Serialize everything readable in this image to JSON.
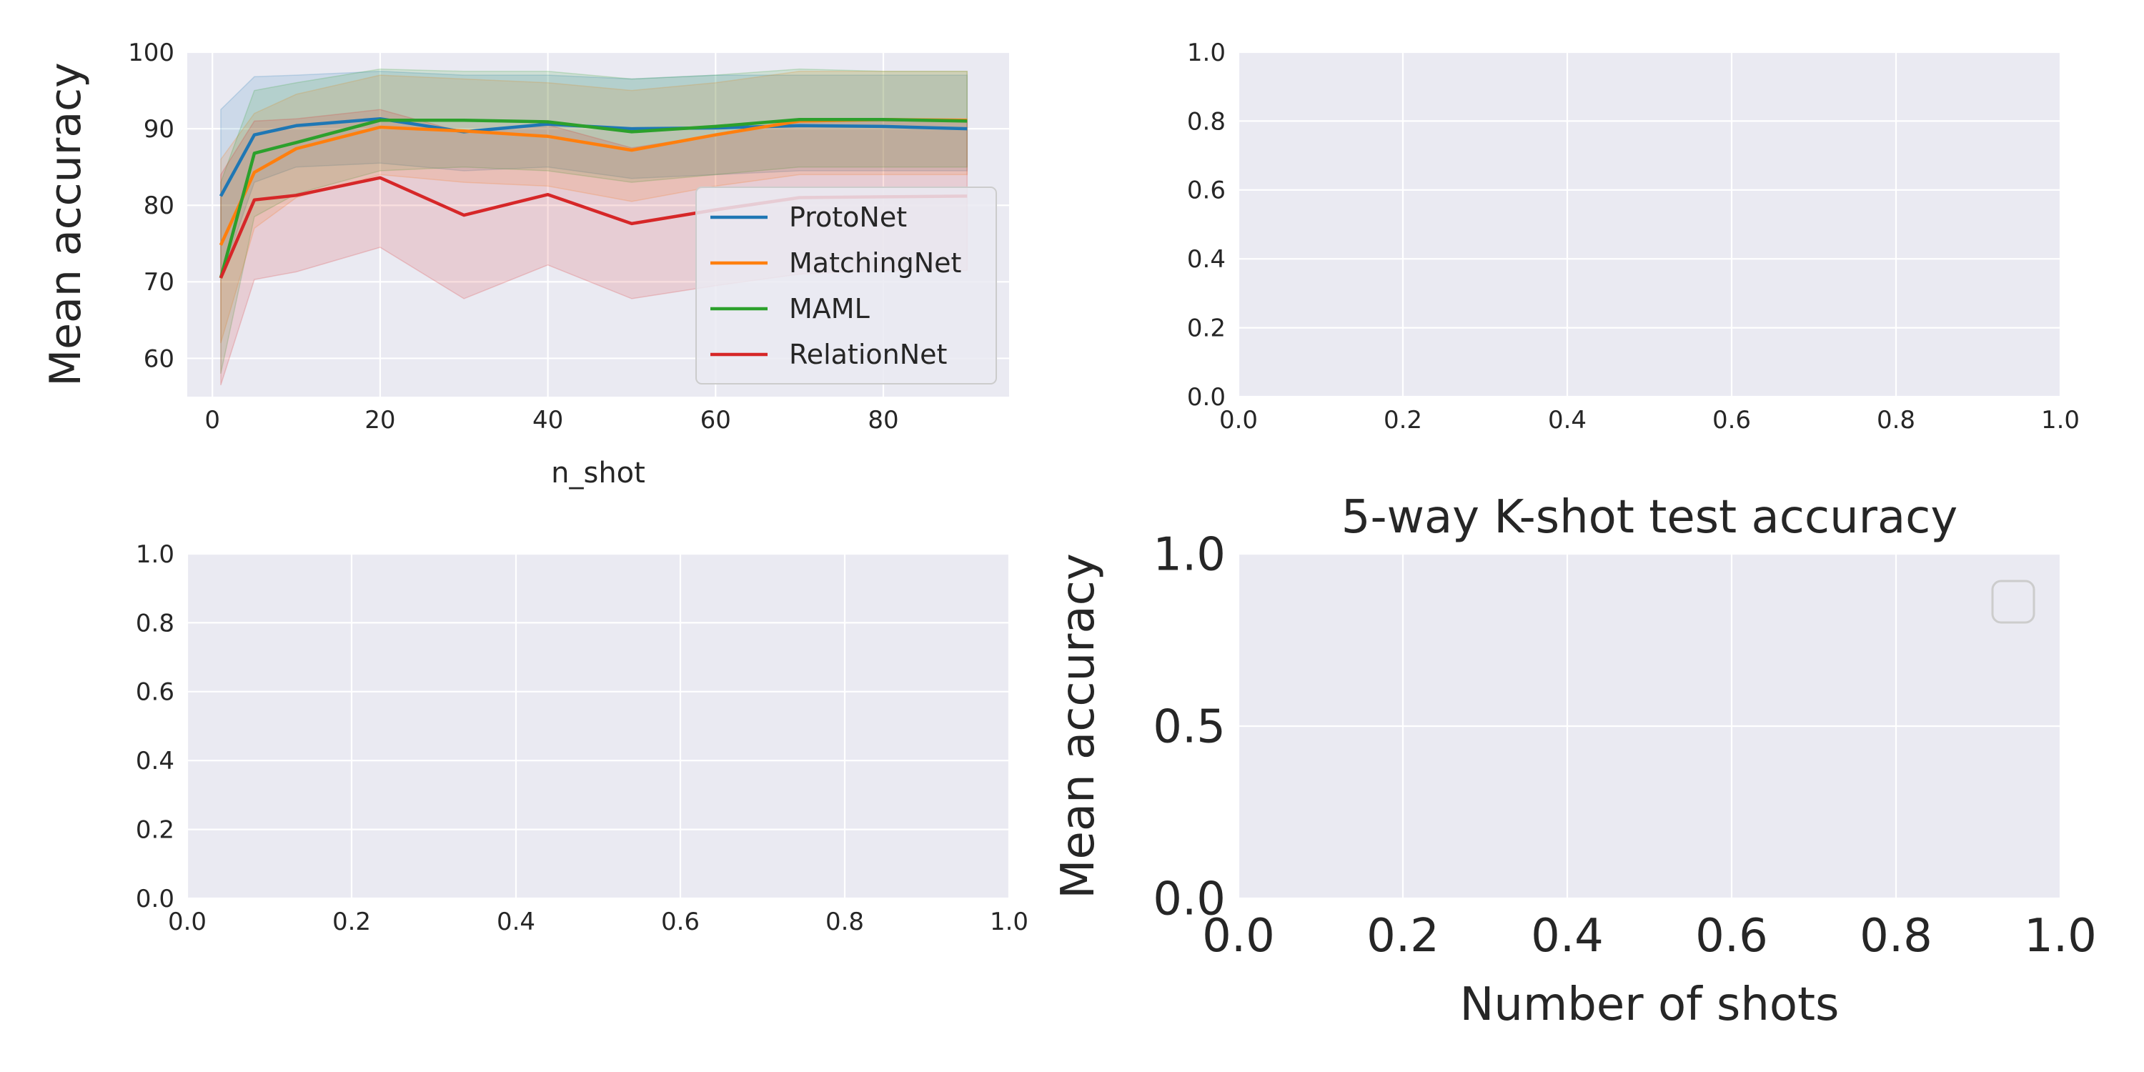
{
  "chart_data": [
    {
      "type": "line",
      "title": "",
      "xlabel": "n_shot",
      "ylabel": "Mean accuracy",
      "xlim": [
        -3,
        95
      ],
      "ylim": [
        55,
        100
      ],
      "xticks": [
        0,
        20,
        40,
        60,
        80
      ],
      "xtick_labels": [
        "0",
        "20",
        "40",
        "60",
        "80"
      ],
      "yticks": [
        60,
        70,
        80,
        90,
        100
      ],
      "ytick_labels": [
        "60",
        "70",
        "80",
        "90",
        "100"
      ],
      "grid": true,
      "legend": "lower-right",
      "x": [
        1,
        5,
        10,
        20,
        30,
        40,
        50,
        60,
        70,
        80,
        90
      ],
      "series": [
        {
          "name": "ProtoNet",
          "color": "#1f77b4",
          "values": [
            81.2,
            89.2,
            90.4,
            91.3,
            89.6,
            90.6,
            90.0,
            90.1,
            90.4,
            90.3,
            90.0
          ],
          "lower": [
            70.5,
            83.0,
            85.0,
            85.5,
            84.5,
            85.0,
            83.5,
            84.0,
            84.5,
            84.5,
            84.5
          ],
          "upper": [
            92.5,
            96.8,
            97.0,
            97.5,
            97.0,
            97.0,
            96.5,
            97.0,
            97.0,
            97.0,
            97.0
          ]
        },
        {
          "name": "MatchingNet",
          "color": "#ff7f0e",
          "values": [
            74.8,
            84.3,
            87.4,
            90.2,
            89.7,
            89.0,
            87.2,
            89.2,
            91.0,
            91.2,
            91.1
          ],
          "lower": [
            62.0,
            77.0,
            81.0,
            84.0,
            83.0,
            82.5,
            80.5,
            82.5,
            84.0,
            84.0,
            84.0
          ],
          "upper": [
            86.0,
            92.0,
            94.5,
            97.0,
            96.5,
            96.0,
            95.0,
            96.0,
            97.5,
            97.5,
            97.5
          ]
        },
        {
          "name": "MAML",
          "color": "#2ca02c",
          "values": [
            70.5,
            86.8,
            88.2,
            91.1,
            91.1,
            90.9,
            89.6,
            90.3,
            91.2,
            91.2,
            91.0
          ],
          "lower": [
            58.0,
            78.5,
            81.5,
            84.5,
            85.0,
            84.5,
            83.0,
            84.0,
            85.0,
            85.0,
            85.0
          ],
          "upper": [
            83.0,
            95.0,
            96.0,
            97.8,
            97.5,
            97.5,
            96.5,
            97.0,
            97.8,
            97.5,
            97.5
          ]
        },
        {
          "name": "RelationNet",
          "color": "#d62728",
          "values": [
            70.5,
            80.7,
            81.3,
            83.6,
            78.7,
            81.4,
            77.6,
            79.4,
            81.0,
            81.1,
            81.2
          ],
          "lower": [
            56.5,
            70.3,
            71.3,
            74.5,
            67.8,
            72.2,
            67.8,
            69.5,
            71.0,
            71.5,
            71.5
          ],
          "upper": [
            84.0,
            91.0,
            91.3,
            92.5,
            89.5,
            90.5,
            87.5,
            89.2,
            91.0,
            91.0,
            91.0
          ]
        }
      ]
    },
    {
      "type": "line",
      "title": "",
      "xlabel": "",
      "ylabel": "",
      "xlim": [
        0,
        1
      ],
      "ylim": [
        0,
        1
      ],
      "xticks": [
        0,
        0.2,
        0.4,
        0.6,
        0.8,
        1.0
      ],
      "xtick_labels": [
        "0.0",
        "0.2",
        "0.4",
        "0.6",
        "0.8",
        "1.0"
      ],
      "yticks": [
        0,
        0.2,
        0.4,
        0.6,
        0.8,
        1.0
      ],
      "ytick_labels": [
        "0.0",
        "0.2",
        "0.4",
        "0.6",
        "0.8",
        "1.0"
      ],
      "grid": true,
      "series": []
    },
    {
      "type": "line",
      "title": "",
      "xlabel": "",
      "ylabel": "",
      "xlim": [
        0,
        1
      ],
      "ylim": [
        0,
        1
      ],
      "xticks": [
        0,
        0.2,
        0.4,
        0.6,
        0.8,
        1.0
      ],
      "xtick_labels": [
        "0.0",
        "0.2",
        "0.4",
        "0.6",
        "0.8",
        "1.0"
      ],
      "yticks": [
        0,
        0.2,
        0.4,
        0.6,
        0.8,
        1.0
      ],
      "ytick_labels": [
        "0.0",
        "0.2",
        "0.4",
        "0.6",
        "0.8",
        "1.0"
      ],
      "grid": true,
      "series": []
    },
    {
      "type": "line",
      "title": "5-way K-shot test accuracy",
      "xlabel": "Number of shots",
      "ylabel": "Mean accuracy",
      "xlim": [
        0,
        1
      ],
      "ylim": [
        0,
        1
      ],
      "xticks": [
        0,
        0.2,
        0.4,
        0.6,
        0.8,
        1.0
      ],
      "xtick_labels": [
        "0.0",
        "0.2",
        "0.4",
        "0.6",
        "0.8",
        "1.0"
      ],
      "yticks": [
        0,
        0.5,
        1.0
      ],
      "ytick_labels": [
        "0.0",
        "0.5",
        "1.0"
      ],
      "grid": true,
      "legend": "top-right",
      "series": []
    }
  ]
}
